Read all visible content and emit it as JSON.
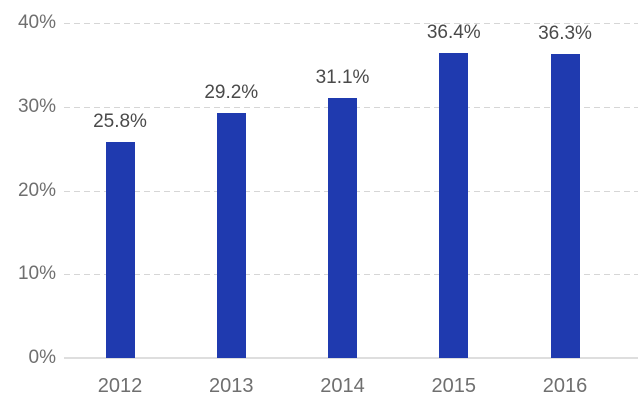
{
  "chart_data": {
    "type": "bar",
    "title": "",
    "xlabel": "",
    "ylabel": "",
    "categories": [
      "2012",
      "2013",
      "2014",
      "2015",
      "2016"
    ],
    "values": [
      25.8,
      29.2,
      31.1,
      36.4,
      36.3
    ],
    "value_labels": [
      "25.8%",
      "29.2%",
      "31.1%",
      "36.4%",
      "36.3%"
    ],
    "ylim": [
      0,
      40
    ],
    "yticks": [
      0,
      10,
      20,
      30,
      40
    ],
    "ytick_labels": [
      "0%",
      "10%",
      "20%",
      "30%",
      "40%"
    ],
    "grid": "horizontal-dashed",
    "legend": "none",
    "colors": {
      "bar": "#1f3aaf",
      "axis_label": "#6f6f6f",
      "value_label": "#4a4a4a",
      "gridline": "#d6d6d6",
      "baseline": "#dedede",
      "background": "#ffffff"
    }
  }
}
